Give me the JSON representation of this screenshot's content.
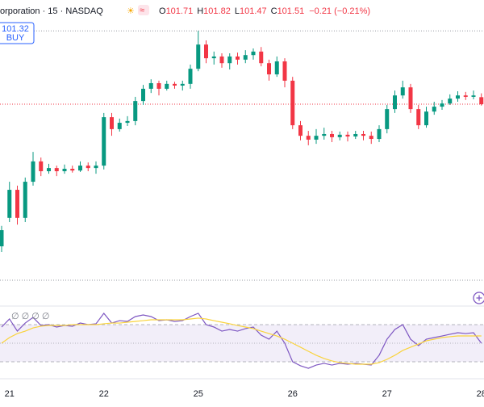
{
  "chart_data": {
    "type": "candlestick",
    "title": "orporation · 15 · NASDAQ",
    "ohlc_letters": [
      "O",
      "H",
      "L",
      "C"
    ],
    "change_label": "−0.21 (−0.21%)",
    "buy_price": "101.32",
    "buy_label": "BUY",
    "up_color": "#089981",
    "down_color": "#f23645",
    "ylim": [
      95.78,
      104.48
    ],
    "categories": [
      null,
      "21",
      null,
      null,
      null,
      null,
      null,
      null,
      null,
      null,
      null,
      null,
      null,
      "22",
      null,
      null,
      null,
      null,
      null,
      null,
      null,
      null,
      null,
      null,
      null,
      "25",
      null,
      null,
      null,
      null,
      null,
      null,
      null,
      null,
      null,
      null,
      null,
      "26",
      null,
      null,
      null,
      null,
      null,
      null,
      null,
      null,
      null,
      null,
      null,
      "27",
      null,
      null,
      null,
      null,
      null,
      null,
      null,
      null,
      null,
      null,
      null,
      "28"
    ],
    "open": [
      97.46,
      98.27,
      99.07,
      98.27,
      99.3,
      99.88,
      99.6,
      99.69,
      99.6,
      99.67,
      99.62,
      99.76,
      99.69,
      99.76,
      101.14,
      100.8,
      100.98,
      101.03,
      101.6,
      101.95,
      102.11,
      101.95,
      102.09,
      102.04,
      102.09,
      102.52,
      103.21,
      102.82,
      102.87,
      102.68,
      102.87,
      102.78,
      102.91,
      103.01,
      102.68,
      102.36,
      102.73,
      102.18,
      100.91,
      100.61,
      100.5,
      100.61,
      100.66,
      100.57,
      100.64,
      100.59,
      100.66,
      100.61,
      100.52,
      100.8,
      101.37,
      101.76,
      101.99,
      101.37,
      100.91,
      101.3,
      101.44,
      101.53,
      101.67,
      101.76,
      101.72,
      101.71
    ],
    "high": [
      98.04,
      99.3,
      99.19,
      99.42,
      100.15,
      99.99,
      99.81,
      99.76,
      99.79,
      99.76,
      99.88,
      99.85,
      99.88,
      101.26,
      101.26,
      101.1,
      101.17,
      101.72,
      102.06,
      102.22,
      102.18,
      102.18,
      102.15,
      102.18,
      102.64,
      103.6,
      103.33,
      103.01,
      102.96,
      102.96,
      102.98,
      103.05,
      103.1,
      103.14,
      102.78,
      102.87,
      102.82,
      102.29,
      101.03,
      100.75,
      100.8,
      100.84,
      100.75,
      100.73,
      100.73,
      100.75,
      100.75,
      100.73,
      100.91,
      101.49,
      101.9,
      102.18,
      102.09,
      101.49,
      101.44,
      101.58,
      101.63,
      101.79,
      101.88,
      101.86,
      101.9,
      101.82
    ],
    "low": [
      97.3,
      98.15,
      98.08,
      98.15,
      99.19,
      99.46,
      99.53,
      99.46,
      99.53,
      99.56,
      99.58,
      99.6,
      99.53,
      99.65,
      100.61,
      100.73,
      100.89,
      100.91,
      101.49,
      101.83,
      101.76,
      101.9,
      101.95,
      101.9,
      101.95,
      102.45,
      102.68,
      102.64,
      102.55,
      102.5,
      102.64,
      102.68,
      102.78,
      102.59,
      102.18,
      102.29,
      101.99,
      100.8,
      100.48,
      100.34,
      100.38,
      100.5,
      100.43,
      100.48,
      100.45,
      100.52,
      100.48,
      100.38,
      100.43,
      100.68,
      101.26,
      101.67,
      101.26,
      100.8,
      100.84,
      101.21,
      101.35,
      101.49,
      101.58,
      101.63,
      101.65,
      101.47
    ],
    "close": [
      97.92,
      99.07,
      98.27,
      99.3,
      99.88,
      99.6,
      99.69,
      99.6,
      99.67,
      99.62,
      99.76,
      99.69,
      99.76,
      101.14,
      100.8,
      100.98,
      101.03,
      101.6,
      101.95,
      102.11,
      101.95,
      102.09,
      102.04,
      102.09,
      102.52,
      103.21,
      102.82,
      102.87,
      102.68,
      102.87,
      102.78,
      102.91,
      103.01,
      102.68,
      102.36,
      102.73,
      102.18,
      100.91,
      100.61,
      100.5,
      100.61,
      100.66,
      100.57,
      100.64,
      100.59,
      100.66,
      100.61,
      100.52,
      100.8,
      101.37,
      101.76,
      101.99,
      101.37,
      100.91,
      101.3,
      101.44,
      101.53,
      101.67,
      101.76,
      101.72,
      101.76,
      101.51
    ],
    "rsi": {
      "legend": "∅ ∅ ∅ ∅",
      "ylim": [
        0,
        100
      ],
      "levels": [
        70,
        50,
        30
      ],
      "series": [
        {
          "color": "#7e57c2",
          "values": [
            67.4,
            76.1,
            63.0,
            71.7,
            77.8,
            69.1,
            70.0,
            67.4,
            69.1,
            68.3,
            71.7,
            70.0,
            70.9,
            82.2,
            71.7,
            74.3,
            73.5,
            78.7,
            80.4,
            78.7,
            74.3,
            75.2,
            73.5,
            74.3,
            78.7,
            82.2,
            70.0,
            67.4,
            63.0,
            64.8,
            63.0,
            65.7,
            67.4,
            58.7,
            54.3,
            63.0,
            50.0,
            30.0,
            25.7,
            23.0,
            26.5,
            28.3,
            26.5,
            28.3,
            27.4,
            28.3,
            27.4,
            26.5,
            37.0,
            54.3,
            64.8,
            70.0,
            54.3,
            47.4,
            54.3,
            56.1,
            57.8,
            59.6,
            61.3,
            60.4,
            61.3,
            50.0
          ]
        },
        {
          "color": "#f9d33c",
          "values": [
            50.0,
            56.1,
            60.4,
            63.0,
            66.5,
            68.3,
            69.1,
            69.1,
            69.1,
            70.0,
            70.0,
            70.0,
            70.0,
            70.9,
            71.7,
            71.7,
            72.6,
            73.5,
            74.3,
            75.2,
            75.2,
            75.2,
            75.2,
            75.2,
            76.1,
            77.0,
            76.1,
            74.3,
            72.6,
            70.9,
            69.1,
            67.4,
            65.7,
            63.0,
            60.4,
            57.8,
            54.3,
            50.0,
            45.7,
            41.3,
            37.0,
            33.5,
            30.9,
            29.1,
            28.3,
            27.4,
            27.4,
            27.4,
            29.1,
            32.6,
            37.0,
            42.2,
            45.7,
            49.1,
            52.6,
            54.3,
            56.1,
            57.0,
            57.8,
            57.8,
            57.8,
            57.8
          ]
        }
      ]
    }
  }
}
